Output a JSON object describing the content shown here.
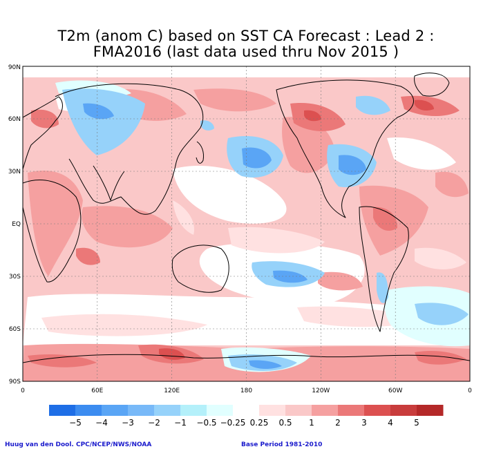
{
  "title_line1": "T2m (anom C) based on SST CA Forecast : Lead 2 :",
  "title_line2": "FMA2016 (last data used thru Nov 2015 )",
  "lat_labels": [
    "90N",
    "60N",
    "30N",
    "EQ",
    "30S",
    "60S",
    "90S"
  ],
  "lon_labels": [
    "0",
    "60E",
    "120E",
    "180",
    "120W",
    "60W",
    "0"
  ],
  "colorbar": {
    "labels": [
      "−5",
      "−4",
      "−3",
      "−2",
      "−1",
      "−0.5",
      "−0.25",
      "0.25",
      "0.5",
      "1",
      "2",
      "3",
      "4",
      "5"
    ],
    "colors": [
      "#1e6ee6",
      "#3c8cf0",
      "#5aa5f5",
      "#78b9f8",
      "#96d2fa",
      "#b4f0fa",
      "#e1ffff",
      "#ffffff",
      "#ffe1e1",
      "#fac8c8",
      "#f5a0a0",
      "#eb7878",
      "#dc5050",
      "#c83c3c",
      "#b42828"
    ]
  },
  "anomaly_colors": {
    "strong_cold": "#5aa5f5",
    "cold": "#96d2fa",
    "cool": "#e1ffff",
    "neutral": "#ffffff",
    "mild_warm": "#ffe1e1",
    "warm": "#fac8c8",
    "hot": "#f5a0a0",
    "very_hot": "#eb7878",
    "extreme": "#dc5050"
  },
  "footer_left": "Huug van den Dool. CPC/NCEP/NWS/NOAA",
  "footer_right": "Base Period 1981-2010"
}
